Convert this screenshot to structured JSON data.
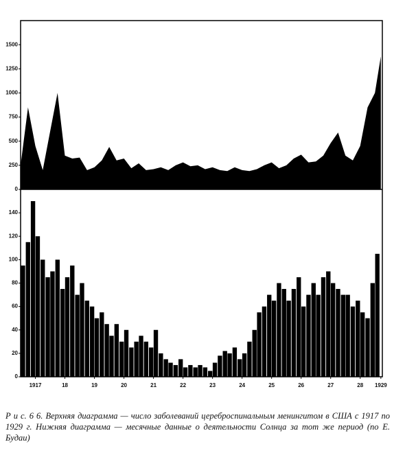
{
  "chart_data": [
    {
      "type": "area",
      "x": [
        1917.0,
        1917.25,
        1917.5,
        1917.75,
        1918.0,
        1918.25,
        1918.5,
        1918.75,
        1919.0,
        1919.25,
        1919.5,
        1919.75,
        1920.0,
        1920.25,
        1920.5,
        1920.75,
        1921.0,
        1921.25,
        1921.5,
        1921.75,
        1922.0,
        1922.25,
        1922.5,
        1922.75,
        1923.0,
        1923.25,
        1923.5,
        1923.75,
        1924.0,
        1924.25,
        1924.5,
        1924.75,
        1925.0,
        1925.25,
        1925.5,
        1925.75,
        1926.0,
        1926.25,
        1926.5,
        1926.75,
        1927.0,
        1927.25,
        1927.5,
        1927.75,
        1928.0,
        1928.25,
        1928.5,
        1928.75,
        1929.0,
        1929.2
      ],
      "values": [
        250,
        850,
        450,
        200,
        600,
        1000,
        350,
        320,
        330,
        200,
        230,
        300,
        440,
        300,
        320,
        220,
        270,
        200,
        210,
        230,
        200,
        250,
        280,
        240,
        250,
        210,
        230,
        200,
        190,
        230,
        200,
        190,
        210,
        250,
        280,
        220,
        250,
        320,
        360,
        280,
        290,
        350,
        480,
        590,
        350,
        300,
        450,
        850,
        1000,
        1380
      ],
      "color": "#000000",
      "xlim": [
        1917,
        1929.25
      ],
      "ylim": [
        0,
        1750
      ],
      "yticks": [
        0,
        250,
        500,
        750,
        1000,
        1250,
        1500
      ]
    },
    {
      "type": "bar",
      "x": [
        1917.08,
        1917.25,
        1917.42,
        1917.58,
        1917.75,
        1917.92,
        1918.08,
        1918.25,
        1918.42,
        1918.58,
        1918.75,
        1918.92,
        1919.08,
        1919.25,
        1919.42,
        1919.58,
        1919.75,
        1919.92,
        1920.08,
        1920.25,
        1920.42,
        1920.58,
        1920.75,
        1920.92,
        1921.08,
        1921.25,
        1921.42,
        1921.58,
        1921.75,
        1921.92,
        1922.08,
        1922.25,
        1922.42,
        1922.58,
        1922.75,
        1922.92,
        1923.08,
        1923.25,
        1923.42,
        1923.58,
        1923.75,
        1923.92,
        1924.08,
        1924.25,
        1924.42,
        1924.58,
        1924.75,
        1924.92,
        1925.08,
        1925.25,
        1925.42,
        1925.58,
        1925.75,
        1925.92,
        1926.08,
        1926.25,
        1926.42,
        1926.58,
        1926.75,
        1926.92,
        1927.08,
        1927.25,
        1927.42,
        1927.58,
        1927.75,
        1927.92,
        1928.08,
        1928.25,
        1928.42,
        1928.58,
        1928.75,
        1928.92,
        1929.08
      ],
      "values": [
        95,
        115,
        150,
        120,
        100,
        85,
        90,
        100,
        75,
        85,
        95,
        70,
        80,
        65,
        60,
        50,
        55,
        45,
        35,
        45,
        30,
        40,
        25,
        30,
        35,
        30,
        25,
        40,
        20,
        15,
        12,
        10,
        15,
        8,
        10,
        8,
        10,
        8,
        5,
        12,
        18,
        22,
        20,
        25,
        15,
        20,
        30,
        40,
        55,
        60,
        70,
        65,
        80,
        75,
        65,
        75,
        85,
        60,
        70,
        80,
        70,
        85,
        90,
        80,
        75,
        70,
        70,
        60,
        65,
        55,
        50,
        80,
        105
      ],
      "color": "#000000",
      "xlim": [
        1917,
        1929.25
      ],
      "ylim": [
        0,
        160
      ],
      "yticks": [
        0,
        20,
        40,
        60,
        80,
        100,
        120,
        140
      ],
      "xticks": [
        {
          "value": 1917.5,
          "label": "1917"
        },
        {
          "value": 1918.5,
          "label": "18"
        },
        {
          "value": 1919.5,
          "label": "19"
        },
        {
          "value": 1920.5,
          "label": "20"
        },
        {
          "value": 1921.5,
          "label": "21"
        },
        {
          "value": 1922.5,
          "label": "22"
        },
        {
          "value": 1923.5,
          "label": "23"
        },
        {
          "value": 1924.5,
          "label": "24"
        },
        {
          "value": 1925.5,
          "label": "25"
        },
        {
          "value": 1926.5,
          "label": "26"
        },
        {
          "value": 1927.5,
          "label": "27"
        },
        {
          "value": 1928.5,
          "label": "28"
        },
        {
          "value": 1929.2,
          "label": "1929"
        }
      ]
    }
  ],
  "caption": "Р и с. 6 6. Верхняя диаграмма — число заболеваний цереброспинальным менингитом в США с 1917 по 1929 г. Нижняя диаграмма — месячные данные о деятельности Солнца за тот же период (по Е. Будаи)"
}
